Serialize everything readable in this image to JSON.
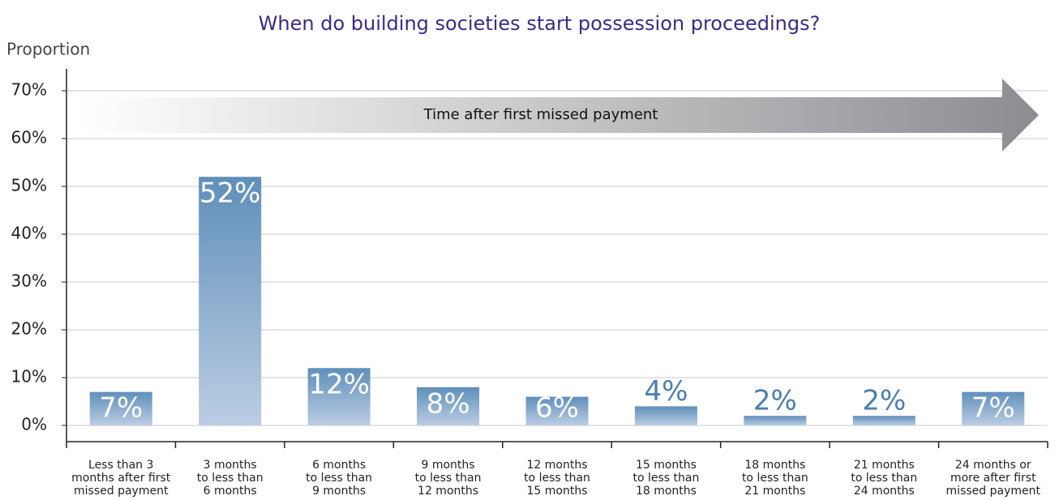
{
  "chart_data": {
    "type": "bar",
    "title": "When do building societies start possession proceedings?",
    "ylabel": "Proportion",
    "annotation": "Time after first missed payment",
    "categories": [
      "Less than 3\nmonths after first\nmissed payment",
      "3 months\nto less than\n6 months",
      "6 months\nto less than\n9 months",
      "9 months\nto less than\n12 months",
      "12 months\nto less than\n15 months",
      "15 months\nto less than\n18 months",
      "18 months\nto less than\n21 months",
      "21 months\nto less than\n24 months",
      "24 months or\nmore after first\nmissed payment"
    ],
    "values": [
      7,
      52,
      12,
      8,
      6,
      4,
      2,
      2,
      7
    ],
    "value_labels": [
      "7%",
      "52%",
      "12%",
      "8%",
      "6%",
      "4%",
      "2%",
      "2%",
      "7%"
    ],
    "color": "#5f8fba",
    "ylim": [
      0,
      70
    ],
    "yticks": [
      {
        "value": 0,
        "label": "0%"
      },
      {
        "value": 10,
        "label": "10%"
      },
      {
        "value": 20,
        "label": "20%"
      },
      {
        "value": 30,
        "label": "30%"
      },
      {
        "value": 40,
        "label": "40%"
      },
      {
        "value": 50,
        "label": "50%"
      },
      {
        "value": 60,
        "label": "60%"
      },
      {
        "value": 70,
        "label": "70%"
      }
    ],
    "grid": true
  }
}
